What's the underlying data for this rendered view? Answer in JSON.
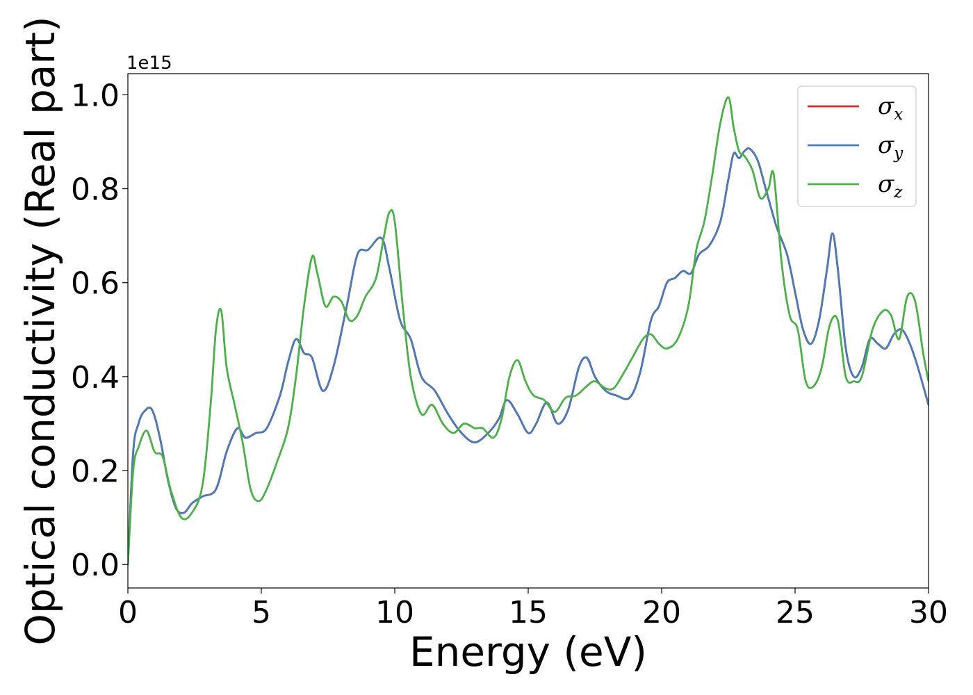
{
  "chart_data": {
    "type": "line",
    "xlabel": "Energy (eV)",
    "ylabel": "Optical conductivity (Real part)",
    "y_offset_label": "1e15",
    "xlim": [
      0,
      30
    ],
    "ylim": [
      -0.05,
      1.045
    ],
    "x_ticks": [
      0,
      5,
      10,
      15,
      20,
      25,
      30
    ],
    "x_tick_labels": [
      "0",
      "5",
      "10",
      "15",
      "20",
      "25",
      "30"
    ],
    "y_ticks": [
      0.0,
      0.2,
      0.4,
      0.6,
      0.8,
      1.0
    ],
    "y_tick_labels": [
      "0.0",
      "0.2",
      "0.4",
      "0.6",
      "0.8",
      "1.0"
    ],
    "grid": false,
    "legend_position": "top-right",
    "series": [
      {
        "name": "σx",
        "symbol": "σ",
        "subscript": "x",
        "color": "#d62728",
        "x": [
          0,
          0.2,
          0.4,
          0.6,
          0.9,
          1.2,
          1.5,
          1.8,
          2.1,
          2.4,
          2.8,
          3.3,
          3.7,
          4.1,
          4.4,
          4.8,
          5.2,
          5.7,
          6.0,
          6.3,
          6.6,
          6.9,
          7.3,
          7.7,
          8.2,
          8.6,
          9.0,
          9.5,
          9.8,
          10.2,
          10.6,
          11.0,
          11.5,
          12.0,
          12.5,
          13.0,
          13.5,
          13.9,
          14.2,
          14.6,
          15.0,
          15.3,
          15.7,
          16.1,
          16.5,
          16.9,
          17.2,
          17.5,
          17.9,
          18.3,
          18.8,
          19.2,
          19.6,
          19.9,
          20.2,
          20.5,
          20.8,
          21.1,
          21.4,
          21.8,
          22.2,
          22.5,
          22.7,
          22.9,
          23.1,
          23.3,
          23.6,
          23.9,
          24.3,
          24.7,
          25.0,
          25.3,
          25.6,
          25.9,
          26.2,
          26.4,
          26.6,
          26.9,
          27.2,
          27.5,
          27.8,
          28.1,
          28.4,
          28.7,
          29.0,
          29.3,
          29.6,
          30.0
        ],
        "y": [
          0.0,
          0.24,
          0.3,
          0.325,
          0.33,
          0.27,
          0.18,
          0.12,
          0.11,
          0.13,
          0.145,
          0.16,
          0.24,
          0.29,
          0.27,
          0.28,
          0.29,
          0.36,
          0.43,
          0.48,
          0.45,
          0.44,
          0.37,
          0.42,
          0.55,
          0.66,
          0.67,
          0.695,
          0.63,
          0.52,
          0.48,
          0.4,
          0.37,
          0.32,
          0.28,
          0.26,
          0.28,
          0.31,
          0.35,
          0.32,
          0.28,
          0.3,
          0.345,
          0.3,
          0.33,
          0.42,
          0.44,
          0.4,
          0.37,
          0.36,
          0.355,
          0.41,
          0.52,
          0.55,
          0.6,
          0.61,
          0.625,
          0.62,
          0.66,
          0.68,
          0.73,
          0.82,
          0.875,
          0.865,
          0.88,
          0.885,
          0.86,
          0.8,
          0.72,
          0.66,
          0.58,
          0.5,
          0.47,
          0.52,
          0.63,
          0.705,
          0.63,
          0.46,
          0.4,
          0.42,
          0.48,
          0.47,
          0.46,
          0.49,
          0.5,
          0.47,
          0.42,
          0.34
        ]
      },
      {
        "name": "σy",
        "symbol": "σ",
        "subscript": "y",
        "color": "#4a7ab7",
        "x": [
          0,
          0.2,
          0.4,
          0.6,
          0.9,
          1.2,
          1.5,
          1.8,
          2.1,
          2.4,
          2.8,
          3.3,
          3.7,
          4.1,
          4.4,
          4.8,
          5.2,
          5.7,
          6.0,
          6.3,
          6.6,
          6.9,
          7.3,
          7.7,
          8.2,
          8.6,
          9.0,
          9.5,
          9.8,
          10.2,
          10.6,
          11.0,
          11.5,
          12.0,
          12.5,
          13.0,
          13.5,
          13.9,
          14.2,
          14.6,
          15.0,
          15.3,
          15.7,
          16.1,
          16.5,
          16.9,
          17.2,
          17.5,
          17.9,
          18.3,
          18.8,
          19.2,
          19.6,
          19.9,
          20.2,
          20.5,
          20.8,
          21.1,
          21.4,
          21.8,
          22.2,
          22.5,
          22.7,
          22.9,
          23.1,
          23.3,
          23.6,
          23.9,
          24.3,
          24.7,
          25.0,
          25.3,
          25.6,
          25.9,
          26.2,
          26.4,
          26.6,
          26.9,
          27.2,
          27.5,
          27.8,
          28.1,
          28.4,
          28.7,
          29.0,
          29.3,
          29.6,
          30.0
        ],
        "y": [
          0.0,
          0.24,
          0.3,
          0.325,
          0.33,
          0.27,
          0.18,
          0.12,
          0.11,
          0.13,
          0.145,
          0.16,
          0.24,
          0.29,
          0.27,
          0.28,
          0.29,
          0.36,
          0.43,
          0.48,
          0.45,
          0.44,
          0.37,
          0.42,
          0.55,
          0.66,
          0.67,
          0.695,
          0.63,
          0.52,
          0.48,
          0.4,
          0.37,
          0.32,
          0.28,
          0.26,
          0.28,
          0.31,
          0.35,
          0.32,
          0.28,
          0.3,
          0.345,
          0.3,
          0.33,
          0.42,
          0.44,
          0.4,
          0.37,
          0.36,
          0.355,
          0.41,
          0.52,
          0.55,
          0.6,
          0.61,
          0.625,
          0.62,
          0.66,
          0.68,
          0.73,
          0.82,
          0.875,
          0.865,
          0.88,
          0.885,
          0.86,
          0.8,
          0.72,
          0.66,
          0.58,
          0.5,
          0.47,
          0.52,
          0.63,
          0.705,
          0.63,
          0.46,
          0.4,
          0.42,
          0.48,
          0.47,
          0.46,
          0.49,
          0.5,
          0.47,
          0.42,
          0.34
        ]
      },
      {
        "name": "σz",
        "symbol": "σ",
        "subscript": "z",
        "color": "#4daf4a",
        "x": [
          0,
          0.2,
          0.4,
          0.7,
          1.0,
          1.3,
          1.6,
          2.0,
          2.4,
          2.8,
          3.1,
          3.3,
          3.5,
          3.7,
          4.0,
          4.3,
          4.6,
          4.9,
          5.2,
          5.6,
          6.0,
          6.3,
          6.6,
          6.9,
          7.1,
          7.4,
          7.7,
          8.0,
          8.3,
          8.6,
          8.9,
          9.3,
          9.6,
          9.8,
          10.0,
          10.3,
          10.6,
          11.0,
          11.4,
          11.8,
          12.2,
          12.6,
          13.0,
          13.3,
          13.7,
          14.0,
          14.3,
          14.6,
          14.9,
          15.2,
          15.6,
          16.0,
          16.4,
          16.8,
          17.2,
          17.5,
          17.9,
          18.2,
          18.5,
          18.9,
          19.3,
          19.6,
          19.9,
          20.2,
          20.6,
          21.0,
          21.3,
          21.6,
          21.9,
          22.2,
          22.5,
          22.7,
          22.9,
          23.1,
          23.4,
          23.7,
          24.0,
          24.2,
          24.5,
          24.8,
          25.1,
          25.4,
          25.7,
          26.0,
          26.3,
          26.6,
          26.9,
          27.2,
          27.5,
          27.9,
          28.3,
          28.6,
          28.9,
          29.2,
          29.5,
          29.8,
          30.0
        ],
        "y": [
          0.0,
          0.2,
          0.25,
          0.285,
          0.24,
          0.23,
          0.16,
          0.1,
          0.11,
          0.17,
          0.34,
          0.5,
          0.54,
          0.42,
          0.34,
          0.26,
          0.16,
          0.135,
          0.16,
          0.22,
          0.29,
          0.4,
          0.55,
          0.655,
          0.62,
          0.55,
          0.57,
          0.56,
          0.52,
          0.53,
          0.57,
          0.61,
          0.7,
          0.75,
          0.73,
          0.55,
          0.4,
          0.32,
          0.34,
          0.3,
          0.28,
          0.3,
          0.29,
          0.29,
          0.27,
          0.31,
          0.4,
          0.435,
          0.39,
          0.36,
          0.35,
          0.325,
          0.355,
          0.36,
          0.38,
          0.39,
          0.375,
          0.375,
          0.4,
          0.44,
          0.48,
          0.49,
          0.47,
          0.46,
          0.48,
          0.55,
          0.67,
          0.73,
          0.83,
          0.94,
          0.995,
          0.93,
          0.88,
          0.87,
          0.84,
          0.78,
          0.8,
          0.83,
          0.64,
          0.53,
          0.5,
          0.39,
          0.38,
          0.42,
          0.51,
          0.52,
          0.4,
          0.39,
          0.4,
          0.5,
          0.54,
          0.53,
          0.48,
          0.57,
          0.56,
          0.45,
          0.39
        ]
      }
    ]
  }
}
